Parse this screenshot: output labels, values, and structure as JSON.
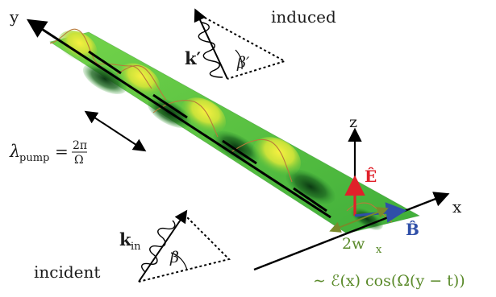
{
  "axes": {
    "y_label": "y",
    "x_label": "x",
    "z_label": "z"
  },
  "labels": {
    "induced": "induced",
    "incident": "incident",
    "k_prime": "k′",
    "beta_prime": "β′",
    "k_in": "k",
    "k_in_sub": "in",
    "beta": "β",
    "lambda_pump_lhs": "λ",
    "lambda_pump_sub": "pump",
    "lambda_pump_eq": "=",
    "lambda_pump_num": "2π",
    "lambda_pump_den": "Ω",
    "E_hat": "Ê",
    "B_hat": "B̂",
    "waist": "2w",
    "waist_sub": "x",
    "field_expr": "∼ ℰ(x) cos(Ω(y − t))"
  },
  "colors": {
    "surface_green": "#5cc23c",
    "surface_yellow": "#f2ec2e",
    "surface_dark": "#0b3a12",
    "ridge_line": "#b87a3a",
    "E_arrow": "#e0202a",
    "B_arrow": "#2f4fa8",
    "waist_arrow": "#7a8a2a",
    "field_text": "#5a8a2a"
  }
}
